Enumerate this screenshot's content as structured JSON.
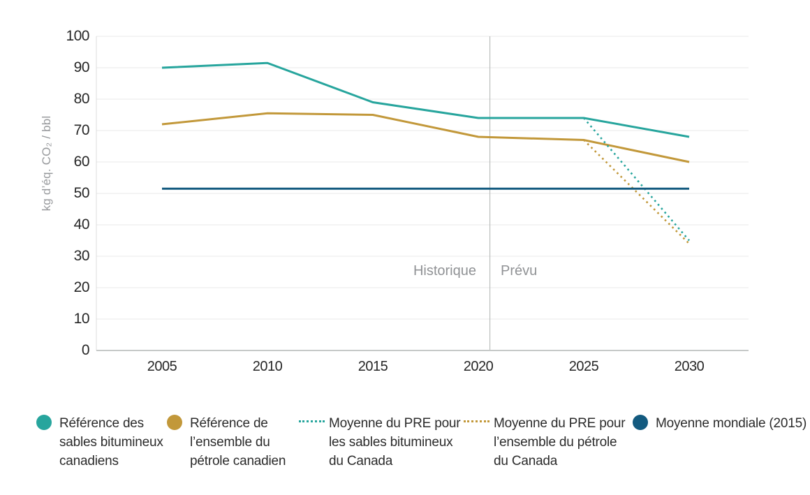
{
  "chart": {
    "y_axis_title": "kg d’éq. CO₂ / bbl",
    "period_labels": {
      "historical": "Historique",
      "forecast": "Prévu"
    }
  },
  "chart_data": {
    "type": "line",
    "x": [
      2005,
      2010,
      2015,
      2020,
      2025,
      2030
    ],
    "xlabel": "",
    "ylabel": "kg d’éq. CO₂ / bbl",
    "ylim": [
      0,
      100
    ],
    "ytick_step": 10,
    "grid": "horizontal",
    "divider_x": 2020.55,
    "legend_position": "bottom",
    "series": [
      {
        "name": "Référence des sables bitumineux canadiens",
        "style": "solid",
        "color": "#27a59d",
        "values": [
          90,
          91.5,
          79,
          74,
          74,
          68
        ]
      },
      {
        "name": "Référence de l’ensemble du pétrole canadien",
        "style": "solid",
        "color": "#c2983a",
        "values": [
          72,
          75.5,
          75,
          68,
          67,
          60
        ]
      },
      {
        "name": "Moyenne du PRE pour les sables bitumineux du Canada",
        "style": "dotted",
        "color": "#27a59d",
        "values": [
          null,
          null,
          null,
          null,
          74,
          35
        ]
      },
      {
        "name": "Moyenne du PRE pour l’ensemble du pétrole du Canada",
        "style": "dotted",
        "color": "#c2983a",
        "values": [
          null,
          null,
          null,
          null,
          67,
          34
        ]
      },
      {
        "name": "Moyenne mondiale (2015)",
        "style": "solid",
        "color": "#135a7f",
        "values": [
          51.5,
          51.5,
          51.5,
          51.5,
          51.5,
          51.5
        ]
      }
    ]
  },
  "legend": {
    "items": [
      {
        "label": "Référence des\nsables bitumineux\ncanadiens"
      },
      {
        "label": "Référence de\nl’ensemble du\npétrole canadien"
      },
      {
        "label": "Moyenne du PRE pour\nles sables bitumineux\ndu Canada"
      },
      {
        "label": "Moyenne du PRE pour\nl’ensemble du pétrole\ndu Canada"
      },
      {
        "label": "Moyenne mondiale (2015)"
      }
    ]
  },
  "colors": {
    "oil_sands_teal": "#27a59d",
    "canadian_crude_gold": "#c2983a",
    "world_average_blue": "#135a7f",
    "gridline": "#e9e9e9",
    "axis_line": "#c6c9c8",
    "divider_line": "#b0b3b2",
    "muted_text": "#97999c",
    "tick_text": "#262626"
  }
}
